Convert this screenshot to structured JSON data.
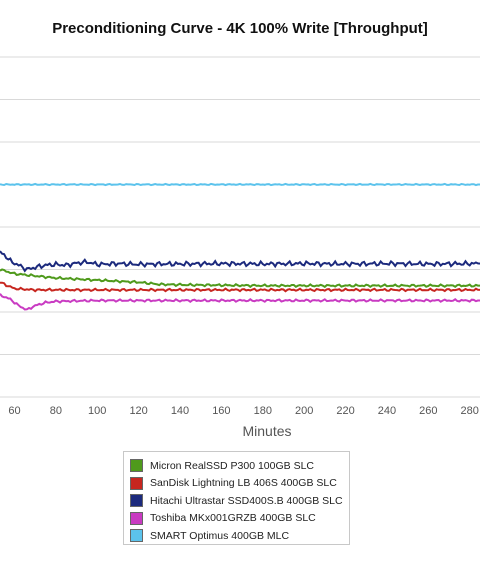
{
  "colors": {
    "grid": "#d9d9d9",
    "micron": "#4f9a1c",
    "sandisk": "#c7261f",
    "hitachi": "#1c2a7d",
    "toshiba": "#c93bc2",
    "smart": "#5cc3ec"
  },
  "chart_data": {
    "type": "line",
    "title": "Preconditioning Curve - 4K 100% Write [Throughput]",
    "xlabel": "Minutes",
    "ylabel": "",
    "x_ticks": [
      "60",
      "80",
      "100",
      "120",
      "140",
      "160",
      "180",
      "200",
      "220",
      "240",
      "260",
      "280"
    ],
    "xlim": [
      53,
      285
    ],
    "grid": true,
    "legend_position": "bottom-center",
    "series": [
      {
        "name": "Micron RealSSD P300 100GB SLC",
        "color_key": "micron",
        "x": [
          53,
          60,
          70,
          80,
          100,
          120,
          130,
          140,
          160,
          180,
          200,
          220,
          240,
          260,
          285
        ],
        "y": [
          0.3,
          0.29,
          0.285,
          0.28,
          0.275,
          0.27,
          0.265,
          0.264,
          0.263,
          0.262,
          0.262,
          0.262,
          0.262,
          0.262,
          0.262
        ]
      },
      {
        "name": "SanDisk Lightning LB 406S 400GB SLC",
        "color_key": "sandisk",
        "x": [
          53,
          60,
          70,
          80,
          100,
          120,
          140,
          160,
          180,
          200,
          220,
          240,
          260,
          285
        ],
        "y": [
          0.27,
          0.255,
          0.252,
          0.252,
          0.252,
          0.252,
          0.252,
          0.252,
          0.252,
          0.252,
          0.252,
          0.252,
          0.252,
          0.252
        ]
      },
      {
        "name": "Hitachi Ultrastar SSD400S.B 400GB SLC",
        "color_key": "hitachi",
        "x": [
          53,
          55,
          58,
          62,
          66,
          70,
          75,
          80,
          85,
          90,
          95,
          100,
          110,
          120,
          130,
          140,
          160,
          180,
          200,
          220,
          240,
          260,
          285
        ],
        "y": [
          0.34,
          0.335,
          0.32,
          0.31,
          0.3,
          0.305,
          0.31,
          0.312,
          0.31,
          0.315,
          0.318,
          0.312,
          0.314,
          0.312,
          0.313,
          0.313,
          0.314,
          0.313,
          0.314,
          0.313,
          0.314,
          0.313,
          0.314
        ]
      },
      {
        "name": "Toshiba MKx001GRZB 400GB SLC",
        "color_key": "toshiba",
        "x": [
          53,
          58,
          62,
          66,
          70,
          75,
          80,
          90,
          100,
          120,
          140,
          160,
          180,
          200,
          220,
          240,
          260,
          285
        ],
        "y": [
          0.24,
          0.23,
          0.215,
          0.205,
          0.215,
          0.222,
          0.225,
          0.226,
          0.227,
          0.227,
          0.227,
          0.227,
          0.227,
          0.227,
          0.227,
          0.227,
          0.227,
          0.227
        ]
      },
      {
        "name": "SMART Optimus 400GB MLC",
        "color_key": "smart",
        "x": [
          53,
          60,
          80,
          100,
          120,
          140,
          160,
          180,
          200,
          220,
          240,
          260,
          285
        ],
        "y": [
          0.5,
          0.5,
          0.5,
          0.5,
          0.5,
          0.5,
          0.5,
          0.5,
          0.5,
          0.5,
          0.5,
          0.5,
          0.5
        ]
      }
    ]
  }
}
